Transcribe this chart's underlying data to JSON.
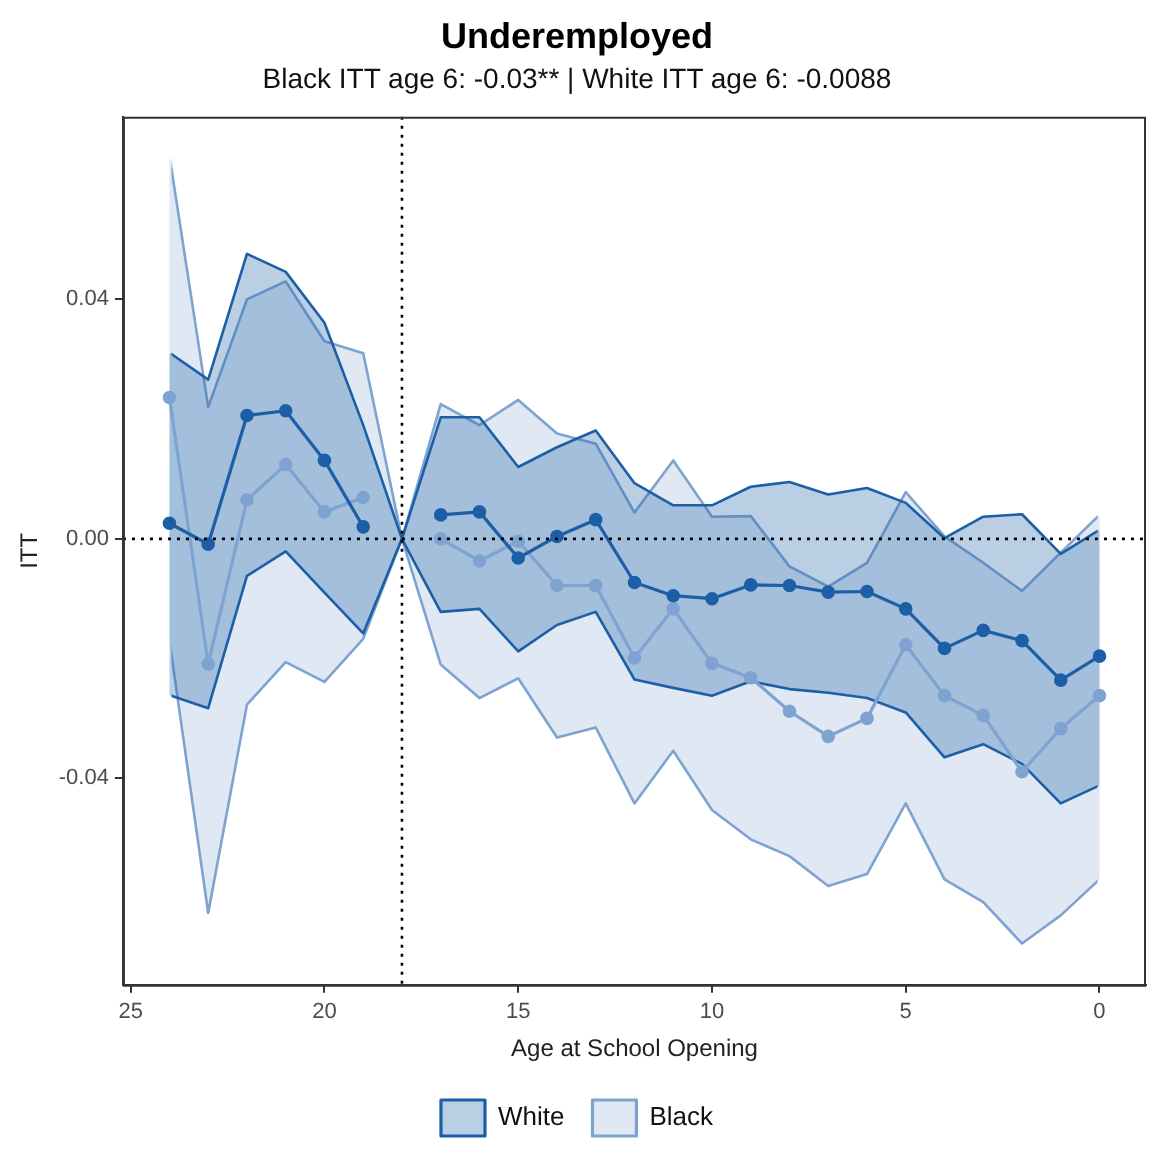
{
  "chart_data": {
    "type": "line",
    "title": "Underemployed",
    "subtitle": "Black ITT age 6: -0.03** | White ITT age 6: -0.0088",
    "xlabel": "Age at School Opening",
    "ylabel": "ITT",
    "x": [
      24,
      23,
      22,
      21,
      20,
      19,
      18,
      17,
      16,
      15,
      14,
      13,
      12,
      11,
      10,
      9,
      8,
      7,
      6,
      5,
      4,
      3,
      2,
      1,
      0
    ],
    "series": [
      {
        "name": "White",
        "color": "#1d5fa6",
        "values": [
          0.0026,
          -0.0009,
          0.0206,
          0.0214,
          0.0131,
          0.002,
          null,
          0.004,
          0.0045,
          -0.0032,
          0.0004,
          0.0032,
          -0.0073,
          -0.0095,
          -0.01,
          -0.0077,
          -0.0078,
          -0.0089,
          -0.0088,
          -0.0117,
          -0.0183,
          -0.0153,
          -0.017,
          -0.0236,
          -0.0196
        ],
        "lower": [
          -0.0261,
          -0.0283,
          -0.0062,
          -0.0021,
          -0.009,
          -0.0158,
          0,
          -0.0122,
          -0.0117,
          -0.0188,
          -0.0144,
          -0.0122,
          -0.0235,
          -0.0249,
          -0.0262,
          -0.0238,
          -0.0251,
          -0.0257,
          -0.0266,
          -0.029,
          -0.0365,
          -0.0343,
          -0.0376,
          -0.0442,
          -0.0412
        ],
        "upper": [
          0.0311,
          0.0266,
          0.0476,
          0.0446,
          0.0361,
          0.019,
          0,
          0.0203,
          0.0203,
          0.012,
          0.0153,
          0.0181,
          0.0093,
          0.0056,
          0.0056,
          0.0087,
          0.0095,
          0.0074,
          0.0085,
          0.006,
          0.0001,
          0.0037,
          0.0041,
          -0.0025,
          0.0015
        ]
      },
      {
        "name": "Black",
        "color": "#7fa3d0",
        "values": [
          0.0236,
          -0.0209,
          0.0065,
          0.0124,
          0.0045,
          0.0069,
          null,
          0,
          -0.0037,
          -0.0004,
          -0.0078,
          -0.0078,
          -0.0199,
          -0.0117,
          -0.0208,
          -0.0232,
          -0.0288,
          -0.033,
          -0.03,
          -0.0177,
          -0.0262,
          -0.0295,
          -0.0389,
          -0.0317,
          -0.0262
        ],
        "lower": [
          -0.017,
          -0.0625,
          -0.0277,
          -0.0206,
          -0.0239,
          -0.0167,
          0,
          -0.021,
          -0.0266,
          -0.0233,
          -0.0332,
          -0.0315,
          -0.0442,
          -0.0354,
          -0.0453,
          -0.0502,
          -0.053,
          -0.058,
          -0.056,
          -0.0442,
          -0.0569,
          -0.0607,
          -0.0676,
          -0.0629,
          -0.0569
        ],
        "upper": [
          0.064,
          0.022,
          0.04,
          0.043,
          0.033,
          0.031,
          0,
          0.0225,
          0.019,
          0.0232,
          0.0176,
          0.0159,
          0.0044,
          0.0131,
          0.0037,
          0.0038,
          -0.0046,
          -0.008,
          -0.004,
          0.0078,
          0.0004,
          -0.004,
          -0.0087,
          -0.0023,
          0.004
        ]
      }
    ],
    "xlim": [
      25.2,
      -1.2
    ],
    "xticks": [
      25,
      20,
      15,
      10,
      5,
      0
    ],
    "ylim": [
      -0.0745,
      0.0705
    ],
    "yticks": [
      -0.04,
      {
        "value": 0,
        "label": "0.00"
      },
      0.04
    ],
    "ref_lines": [
      {
        "axis": "x",
        "value": 18,
        "color": "#000000",
        "line_style": "dotted"
      },
      {
        "axis": "y",
        "value": 0,
        "color": "#000000",
        "line_style": "dotted"
      }
    ],
    "grid": false,
    "legend": "bottom",
    "marker": "circle"
  }
}
